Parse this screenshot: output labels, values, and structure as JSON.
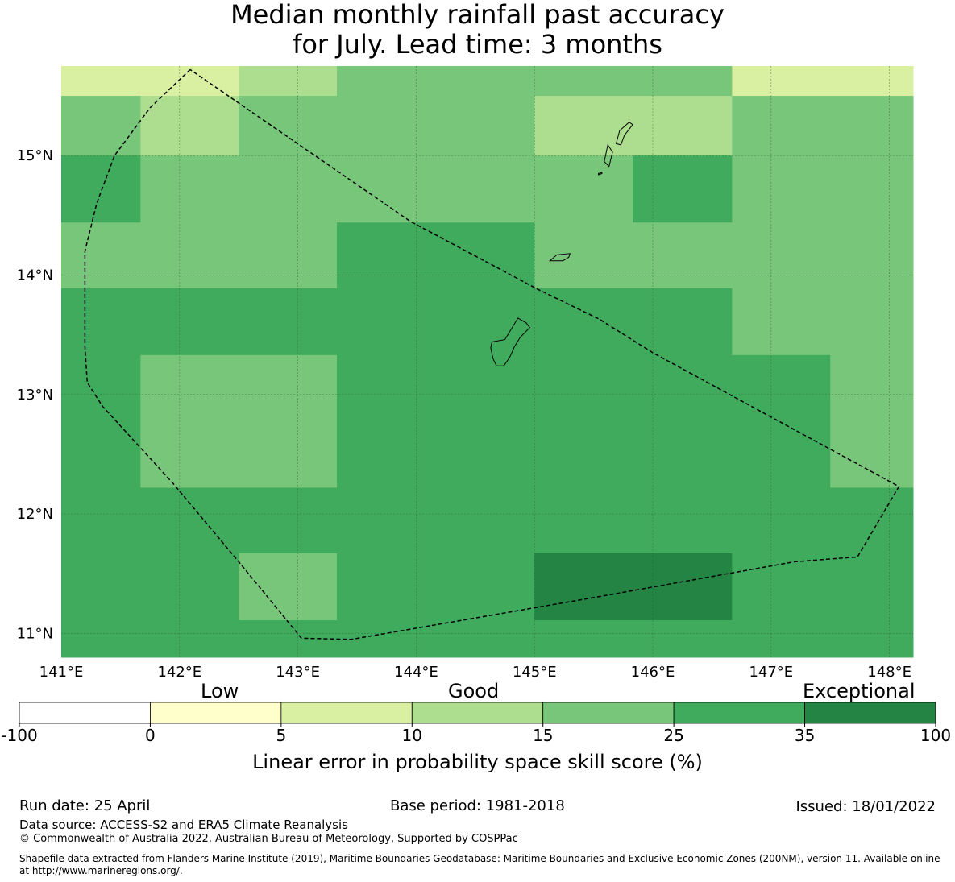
{
  "title": {
    "line1": "Median monthly rainfall past accuracy",
    "line2": "for July. Lead time: 3 months"
  },
  "map": {
    "lon_range": [
      141.0,
      148.2
    ],
    "lat_range": [
      10.8,
      15.75
    ],
    "x_ticks": [
      "141°E",
      "142°E",
      "143°E",
      "144°E",
      "145°E",
      "146°E",
      "147°E",
      "148°E"
    ],
    "y_ticks": [
      "15°N",
      "14°N",
      "13°N",
      "12°N",
      "11°N"
    ],
    "grid_cells": [
      {
        "lon": [
          141.0,
          142.5
        ],
        "lat": [
          15.5,
          15.75
        ],
        "score": "5-10"
      },
      {
        "lon": [
          142.5,
          143.33
        ],
        "lat": [
          15.5,
          15.75
        ],
        "score": "10-15"
      },
      {
        "lon": [
          143.33,
          146.67
        ],
        "lat": [
          15.5,
          15.75
        ],
        "score": "15-25"
      },
      {
        "lon": [
          146.67,
          148.2
        ],
        "lat": [
          15.5,
          15.75
        ],
        "score": "5-10"
      },
      {
        "lon": [
          141.0,
          141.67
        ],
        "lat": [
          15.0,
          15.5
        ],
        "score": "15-25"
      },
      {
        "lon": [
          141.67,
          142.5
        ],
        "lat": [
          15.0,
          15.5
        ],
        "score": "10-15"
      },
      {
        "lon": [
          142.5,
          145.0
        ],
        "lat": [
          15.0,
          15.5
        ],
        "score": "15-25"
      },
      {
        "lon": [
          145.0,
          146.67
        ],
        "lat": [
          15.0,
          15.5
        ],
        "score": "10-15"
      },
      {
        "lon": [
          146.67,
          148.2
        ],
        "lat": [
          15.0,
          15.5
        ],
        "score": "15-25"
      },
      {
        "lon": [
          141.0,
          141.67
        ],
        "lat": [
          14.44,
          15.0
        ],
        "score": "25-35"
      },
      {
        "lon": [
          141.67,
          145.83
        ],
        "lat": [
          14.44,
          15.0
        ],
        "score": "15-25"
      },
      {
        "lon": [
          145.83,
          146.67
        ],
        "lat": [
          14.44,
          15.0
        ],
        "score": "25-35"
      },
      {
        "lon": [
          146.67,
          148.2
        ],
        "lat": [
          14.44,
          15.0
        ],
        "score": "15-25"
      },
      {
        "lon": [
          141.0,
          143.33
        ],
        "lat": [
          13.89,
          14.44
        ],
        "score": "15-25"
      },
      {
        "lon": [
          143.33,
          145.0
        ],
        "lat": [
          13.89,
          14.44
        ],
        "score": "25-35"
      },
      {
        "lon": [
          145.0,
          148.2
        ],
        "lat": [
          13.89,
          14.44
        ],
        "score": "15-25"
      },
      {
        "lon": [
          141.0,
          146.67
        ],
        "lat": [
          13.33,
          13.89
        ],
        "score": "25-35"
      },
      {
        "lon": [
          146.67,
          148.2
        ],
        "lat": [
          13.33,
          13.89
        ],
        "score": "15-25"
      },
      {
        "lon": [
          141.0,
          141.67
        ],
        "lat": [
          12.22,
          13.33
        ],
        "score": "25-35"
      },
      {
        "lon": [
          141.67,
          143.33
        ],
        "lat": [
          12.22,
          13.33
        ],
        "score": "15-25"
      },
      {
        "lon": [
          143.33,
          147.5
        ],
        "lat": [
          12.22,
          13.33
        ],
        "score": "25-35"
      },
      {
        "lon": [
          147.5,
          148.2
        ],
        "lat": [
          12.22,
          13.33
        ],
        "score": "15-25"
      },
      {
        "lon": [
          141.0,
          148.2
        ],
        "lat": [
          11.67,
          12.22
        ],
        "score": "25-35"
      },
      {
        "lon": [
          141.0,
          142.5
        ],
        "lat": [
          11.11,
          11.67
        ],
        "score": "25-35"
      },
      {
        "lon": [
          142.5,
          143.33
        ],
        "lat": [
          11.11,
          11.67
        ],
        "score": "15-25"
      },
      {
        "lon": [
          143.33,
          145.0
        ],
        "lat": [
          11.11,
          11.67
        ],
        "score": "25-35"
      },
      {
        "lon": [
          145.0,
          146.67
        ],
        "lat": [
          11.11,
          11.67
        ],
        "score": "35-100"
      },
      {
        "lon": [
          146.67,
          148.2
        ],
        "lat": [
          11.11,
          11.67
        ],
        "score": "25-35"
      },
      {
        "lon": [
          141.0,
          148.2
        ],
        "lat": [
          10.8,
          11.11
        ],
        "score": "25-35"
      }
    ],
    "eez_boundary": [
      [
        142.09,
        15.72
      ],
      [
        141.75,
        15.4
      ],
      [
        141.45,
        15.0
      ],
      [
        141.3,
        14.6
      ],
      [
        141.2,
        14.2
      ],
      [
        141.2,
        13.8
      ],
      [
        141.2,
        13.4
      ],
      [
        141.22,
        13.1
      ],
      [
        141.35,
        12.9
      ],
      [
        141.95,
        12.25
      ],
      [
        142.5,
        11.6
      ],
      [
        143.03,
        10.96
      ],
      [
        143.45,
        10.95
      ],
      [
        145.5,
        11.3
      ],
      [
        147.2,
        11.6
      ],
      [
        147.73,
        11.64
      ],
      [
        148.08,
        12.23
      ],
      [
        146.0,
        13.35
      ],
      [
        145.55,
        13.63
      ],
      [
        145.03,
        13.88
      ],
      [
        143.95,
        14.45
      ],
      [
        142.09,
        15.72
      ]
    ],
    "islands": [
      {
        "name": "Guam",
        "coords": [
          [
            144.64,
            13.44
          ],
          [
            144.75,
            13.46
          ],
          [
            144.86,
            13.64
          ],
          [
            144.93,
            13.6
          ],
          [
            144.96,
            13.56
          ],
          [
            144.88,
            13.48
          ],
          [
            144.83,
            13.4
          ],
          [
            144.79,
            13.31
          ],
          [
            144.74,
            13.24
          ],
          [
            144.68,
            13.24
          ],
          [
            144.65,
            13.3
          ],
          [
            144.63,
            13.39
          ],
          [
            144.64,
            13.44
          ]
        ]
      },
      {
        "name": "Rota",
        "coords": [
          [
            145.13,
            14.12
          ],
          [
            145.19,
            14.17
          ],
          [
            145.3,
            14.18
          ],
          [
            145.29,
            14.15
          ],
          [
            145.24,
            14.12
          ],
          [
            145.18,
            14.12
          ],
          [
            145.13,
            14.12
          ]
        ]
      },
      {
        "name": "Tinian",
        "coords": [
          [
            145.59,
            14.95
          ],
          [
            145.62,
            15.09
          ],
          [
            145.66,
            15.03
          ],
          [
            145.63,
            14.91
          ],
          [
            145.59,
            14.95
          ]
        ]
      },
      {
        "name": "Saipan",
        "coords": [
          [
            145.69,
            15.1
          ],
          [
            145.72,
            15.21
          ],
          [
            145.8,
            15.28
          ],
          [
            145.83,
            15.26
          ],
          [
            145.76,
            15.17
          ],
          [
            145.73,
            15.09
          ],
          [
            145.69,
            15.1
          ]
        ]
      },
      {
        "name": "Aguijan",
        "coords": [
          [
            145.54,
            14.85
          ],
          [
            145.57,
            14.86
          ],
          [
            145.57,
            14.85
          ],
          [
            145.54,
            14.84
          ],
          [
            145.54,
            14.85
          ]
        ]
      }
    ]
  },
  "colorbar": {
    "category_labels": [
      "Low",
      "Good",
      "Exceptional"
    ],
    "bins": [
      {
        "from": "-100",
        "to": "0",
        "color": "#ffffff"
      },
      {
        "from": "0",
        "to": "5",
        "color": "#ffffcc"
      },
      {
        "from": "5",
        "to": "10",
        "color": "#d9f0a3"
      },
      {
        "from": "10",
        "to": "15",
        "color": "#addd8e"
      },
      {
        "from": "15",
        "to": "25",
        "color": "#78c679"
      },
      {
        "from": "25",
        "to": "35",
        "color": "#41ab5d"
      },
      {
        "from": "35",
        "to": "100",
        "color": "#238443"
      }
    ],
    "tick_labels": [
      "-100",
      "0",
      "5",
      "10",
      "15",
      "25",
      "35",
      "100"
    ],
    "label": "Linear error in probability space skill score (%)"
  },
  "footer": {
    "run_date": "Run date: 25 April",
    "base_period": "Base period: 1981-2018",
    "issued": "Issued: 18/01/2022",
    "data_source": "Data source: ACCESS-S2 and ERA5 Climate Reanalysis",
    "copyright": "© Commonwealth of Australia 2022, Australian Bureau of Meteorology, Supported by COSPPac",
    "shapefile_line1": "Shapefile data extracted from Flanders Marine Institute (2019), Maritime Boundaries Geodatabase: Maritime Boundaries and Exclusive Economic Zones (200NM), version 11. Available online",
    "shapefile_line2": "at http://www.marineregions.org/."
  }
}
